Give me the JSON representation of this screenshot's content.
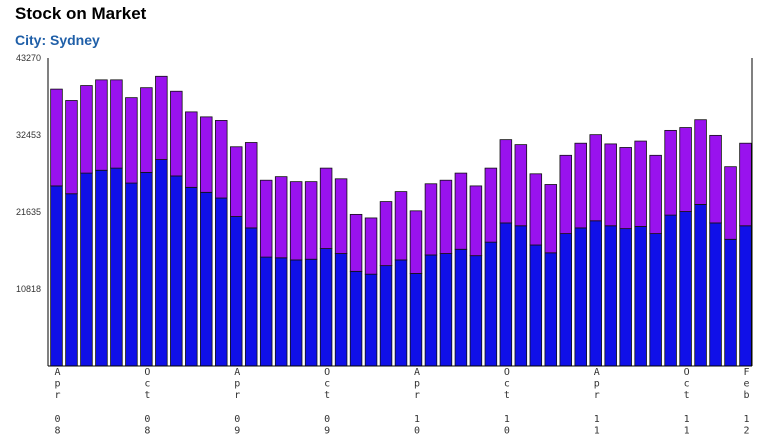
{
  "title": "Stock on Market",
  "subtitle": "City: Sydney",
  "colors": {
    "lower": "#1010e8",
    "upper": "#9912ee",
    "stroke": "#111111"
  },
  "chart_data": {
    "type": "bar",
    "stacked": true,
    "ylim": [
      0,
      43270
    ],
    "yticks": [
      43270,
      32453,
      21635,
      10818
    ],
    "xtick_labels": [
      {
        "index": 0,
        "label": "Apr 08"
      },
      {
        "index": 6,
        "label": "Oct 08"
      },
      {
        "index": 12,
        "label": "Apr 09"
      },
      {
        "index": 18,
        "label": "Oct 09"
      },
      {
        "index": 24,
        "label": "Apr 10"
      },
      {
        "index": 30,
        "label": "Oct 10"
      },
      {
        "index": 36,
        "label": "Apr 11"
      },
      {
        "index": 42,
        "label": "Oct 11"
      },
      {
        "index": 46,
        "label": "Feb 12"
      }
    ],
    "series": [
      {
        "values": [
          25300,
          24200,
          27100,
          27500,
          27800,
          25700,
          27200,
          29000,
          26700,
          25100,
          24400,
          23600,
          21000,
          19400,
          15300,
          15200,
          14900,
          15000,
          16500,
          15800,
          13300,
          12900,
          14100,
          14900,
          13000,
          15600,
          15800,
          16400,
          15500,
          17400,
          20100,
          19700,
          17000,
          15900,
          18600,
          19400,
          20400,
          19700,
          19300,
          19600,
          18600,
          21200,
          21700,
          22700,
          20100,
          17800,
          19700
        ]
      },
      {
        "values": [
          13600,
          13100,
          12300,
          12700,
          12400,
          12000,
          11900,
          11700,
          11900,
          10600,
          10600,
          10900,
          9800,
          12000,
          10800,
          11400,
          11000,
          10900,
          11300,
          10500,
          8000,
          7900,
          9000,
          9600,
          8800,
          10000,
          10300,
          10700,
          9800,
          10400,
          11700,
          11400,
          10000,
          9600,
          11000,
          11900,
          12100,
          11500,
          11400,
          12000,
          11000,
          11900,
          11800,
          11900,
          12300,
          10200,
          11600
        ]
      }
    ]
  }
}
